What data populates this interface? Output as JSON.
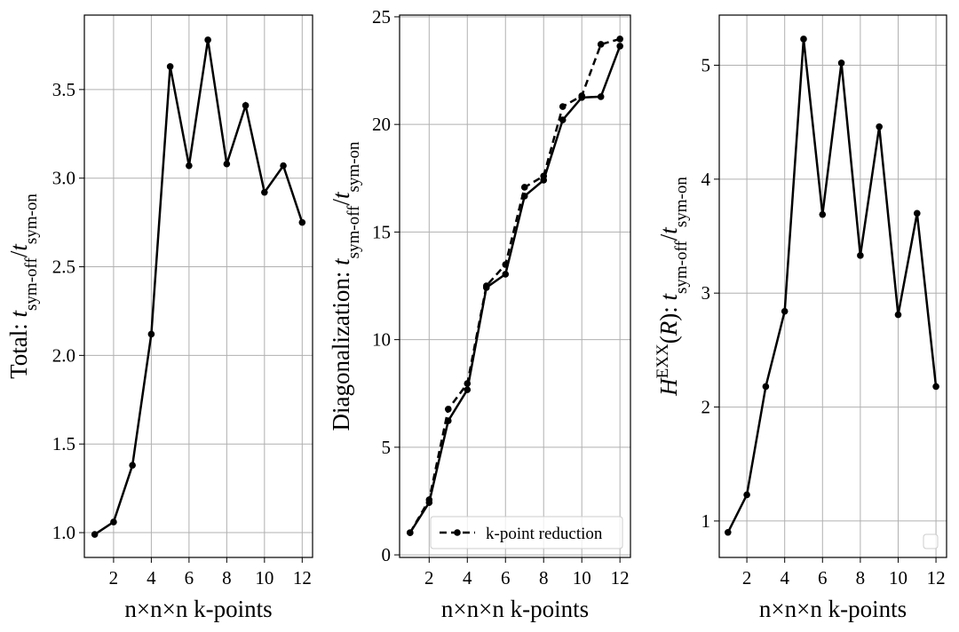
{
  "chart_data": [
    {
      "type": "line",
      "x": [
        1,
        2,
        3,
        4,
        5,
        6,
        7,
        8,
        9,
        10,
        11,
        12
      ],
      "xlim": [
        0.45,
        12.55
      ],
      "ylim": [
        0.86,
        3.92
      ],
      "xticks": [
        2,
        4,
        6,
        8,
        10,
        12
      ],
      "yticks": [
        {
          "value": 1,
          "label": "1.0"
        },
        1.5,
        {
          "value": 2,
          "label": "2.0"
        },
        2.5,
        {
          "value": 3,
          "label": "3.0"
        },
        3.5
      ],
      "grid": true,
      "xlabel": "n×n×n k-points",
      "ylabel": [
        {
          "text": "Total: ",
          "style": "normal"
        },
        {
          "text": "t",
          "style": "italic"
        },
        {
          "text": "sym-off",
          "style": "sub"
        },
        {
          "text": "/",
          "style": "normal"
        },
        {
          "text": "t",
          "style": "italic"
        },
        {
          "text": "sym-on",
          "style": "sub"
        }
      ],
      "series": [
        {
          "color": "#000000",
          "linestyle": "solid",
          "values": [
            0.99,
            1.06,
            1.38,
            2.12,
            3.63,
            3.07,
            3.78,
            3.08,
            3.41,
            2.92,
            3.07,
            2.75
          ]
        }
      ]
    },
    {
      "type": "line",
      "x": [
        1,
        2,
        3,
        4,
        5,
        6,
        7,
        8,
        9,
        10,
        11,
        12
      ],
      "xlim": [
        0.45,
        12.55
      ],
      "ylim": [
        -0.12,
        25.08
      ],
      "xticks": [
        2,
        4,
        6,
        8,
        10,
        12
      ],
      "yticks": [
        0,
        5,
        10,
        15,
        20,
        25
      ],
      "grid": true,
      "xlabel": "n×n×n k-points",
      "ylabel": [
        {
          "text": "Diagonalization: ",
          "style": "normal"
        },
        {
          "text": "t",
          "style": "italic"
        },
        {
          "text": "sym-off",
          "style": "sub"
        },
        {
          "text": "/",
          "style": "normal"
        },
        {
          "text": "t",
          "style": "italic"
        },
        {
          "text": "sym-on",
          "style": "sub"
        }
      ],
      "legend": "lower center",
      "series": [
        {
          "color": "#000000",
          "linestyle": "solid",
          "values": [
            1.03,
            2.43,
            6.23,
            7.67,
            12.42,
            13.04,
            16.67,
            17.41,
            20.21,
            21.25,
            21.29,
            23.64
          ]
        },
        {
          "name": "k-point reduction",
          "color": "#000000",
          "linestyle": "dashed",
          "values": [
            1.03,
            2.56,
            6.77,
            7.96,
            12.5,
            13.49,
            17.08,
            17.6,
            20.83,
            21.33,
            23.72,
            23.97
          ]
        }
      ]
    },
    {
      "type": "line",
      "x": [
        1,
        2,
        3,
        4,
        5,
        6,
        7,
        8,
        9,
        10,
        11,
        12
      ],
      "xlim": [
        0.54,
        12.56
      ],
      "ylim": [
        0.68,
        5.44
      ],
      "xticks": [
        2,
        4,
        6,
        8,
        10,
        12
      ],
      "yticks": [
        1,
        2,
        3,
        4,
        5
      ],
      "grid": true,
      "xlabel": "n×n×n k-points",
      "ylabel": [
        {
          "text": "H",
          "style": "italic"
        },
        {
          "text": "EXX",
          "style": "sup"
        },
        {
          "text": "(",
          "style": "normal"
        },
        {
          "text": "R",
          "style": "italic"
        },
        {
          "text": "): ",
          "style": "normal"
        },
        {
          "text": "t",
          "style": "italic"
        },
        {
          "text": "sym-off",
          "style": "sub"
        },
        {
          "text": "/",
          "style": "normal"
        },
        {
          "text": "t",
          "style": "italic"
        },
        {
          "text": "sym-on",
          "style": "sub"
        }
      ],
      "legend": "lower right",
      "series": [
        {
          "color": "#000000",
          "linestyle": "solid",
          "values": [
            0.9,
            1.23,
            2.18,
            2.84,
            5.23,
            3.69,
            5.02,
            3.33,
            4.46,
            2.81,
            3.7,
            2.18
          ]
        }
      ]
    }
  ]
}
